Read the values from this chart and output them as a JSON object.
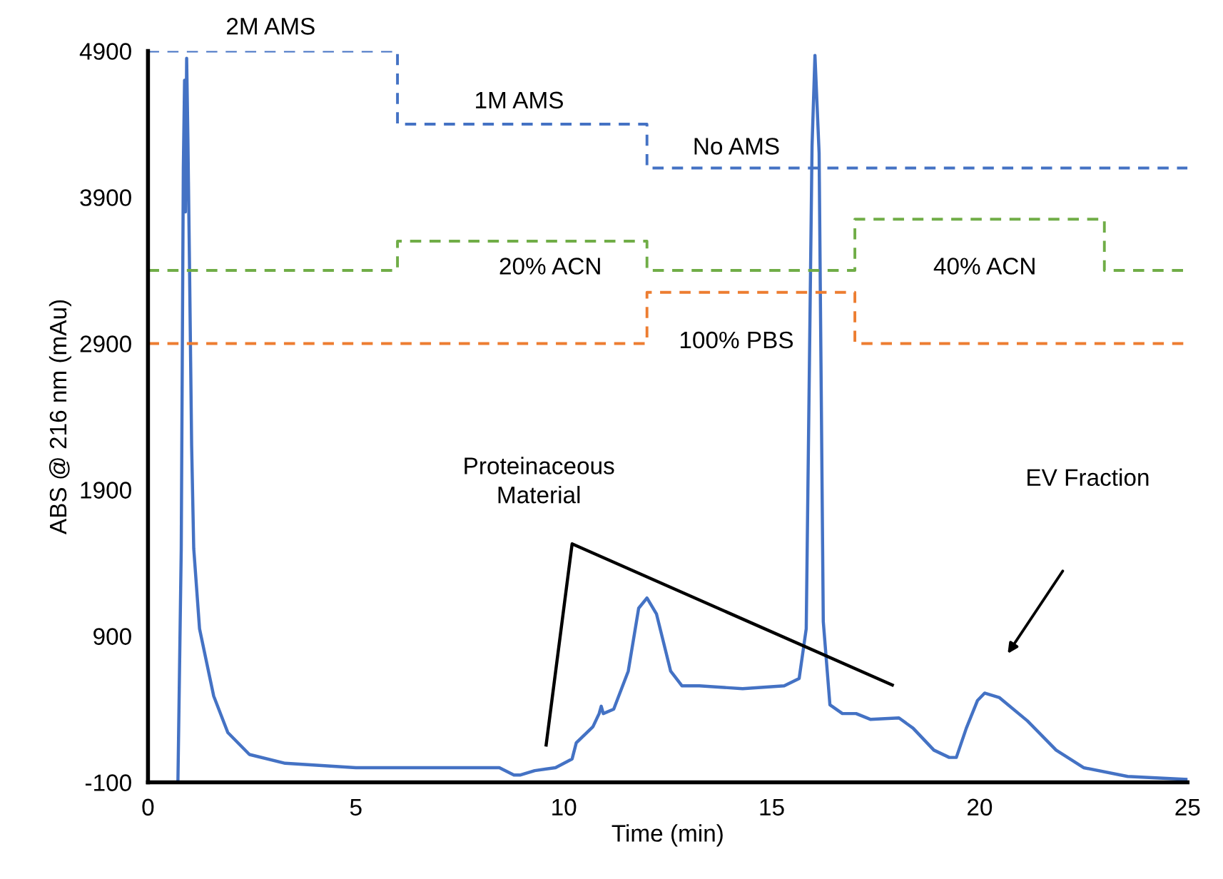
{
  "chart_data": {
    "type": "line",
    "xlabel": "Time (min)",
    "ylabel": "ABS @ 216 nm (mAu)",
    "xlim": [
      0,
      25
    ],
    "xticks": [
      0,
      5,
      10,
      15,
      20,
      25
    ],
    "ylim": [
      -100,
      4900
    ],
    "yticks": [
      -100,
      900,
      1900,
      2900,
      3900,
      4900
    ],
    "grid": false,
    "legend": false,
    "series": [
      {
        "color": "#4472c4",
        "line_style": "solid",
        "x": [
          0,
          0.72,
          0.8,
          0.85,
          0.88,
          0.9,
          0.93,
          0.96,
          1.0,
          1.05,
          1.1,
          1.24,
          1.58,
          1.92,
          2.44,
          3.3,
          5.0,
          8.45,
          8.8,
          8.96,
          9.3,
          9.8,
          10.2,
          10.3,
          10.7,
          10.85,
          10.9,
          10.95,
          11.2,
          11.55,
          11.8,
          12.0,
          12.23,
          12.57,
          12.84,
          13.26,
          14.3,
          15.3,
          15.66,
          15.83,
          15.97,
          16.04,
          16.14,
          16.24,
          16.4,
          16.7,
          17.03,
          17.38,
          18.06,
          18.4,
          18.9,
          19.27,
          19.44,
          19.68,
          19.95,
          20.12,
          20.47,
          21.15,
          21.84,
          22.5,
          23.56,
          25
        ],
        "values": [
          -100,
          -100,
          1500,
          4100,
          4700,
          3800,
          4850,
          4300,
          3400,
          2200,
          1500,
          950,
          490,
          240,
          90,
          30,
          0,
          0,
          -50,
          -50,
          -20,
          0,
          60,
          170,
          280,
          370,
          420,
          370,
          400,
          660,
          1090,
          1160,
          1050,
          660,
          560,
          560,
          540,
          560,
          610,
          950,
          4250,
          4870,
          4200,
          1000,
          430,
          370,
          370,
          330,
          340,
          270,
          120,
          70,
          70,
          270,
          460,
          510,
          480,
          320,
          120,
          0,
          -60,
          -80
        ]
      },
      {
        "color": "#4472c4",
        "type": "step",
        "line_style": "dashed",
        "x": [
          0,
          6,
          12,
          25
        ],
        "values": [
          4900,
          4400,
          4100,
          4100
        ]
      },
      {
        "color": "#70ad47",
        "type": "step",
        "line_style": "dashed",
        "x": [
          0,
          6,
          12,
          17,
          23,
          25
        ],
        "values": [
          3400,
          3600,
          3400,
          3750,
          3400,
          3400
        ]
      },
      {
        "color": "#ed7d31",
        "type": "step",
        "line_style": "dashed",
        "x": [
          0,
          12,
          17,
          25
        ],
        "values": [
          2900,
          3250,
          2900,
          2900
        ]
      }
    ],
    "annotations": [
      "2M AMS",
      "1M AMS",
      "No AMS",
      "20% ACN",
      "40% ACN",
      "100% PBS",
      "Proteinaceous\nMaterial",
      "EV Fraction"
    ]
  }
}
